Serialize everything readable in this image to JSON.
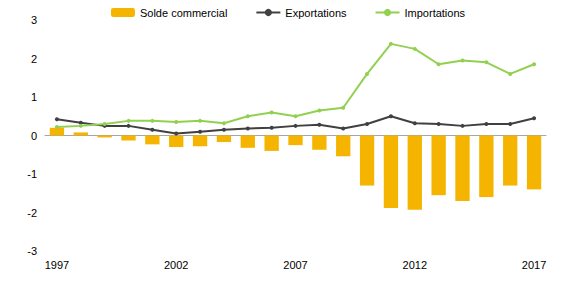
{
  "chart_data": {
    "type": "bar",
    "categories": [
      "1997",
      null,
      null,
      null,
      null,
      "2002",
      null,
      null,
      null,
      null,
      "2007",
      null,
      null,
      null,
      null,
      "2012",
      null,
      null,
      null,
      null,
      "2017"
    ],
    "series": [
      {
        "name": "Solde commercial",
        "type": "bar",
        "color": "#F4B400",
        "values": [
          0.2,
          0.08,
          -0.05,
          -0.13,
          -0.23,
          -0.3,
          -0.28,
          -0.17,
          -0.32,
          -0.4,
          -0.25,
          -0.37,
          -0.54,
          -1.3,
          -1.88,
          -1.93,
          -1.55,
          -1.7,
          -1.6,
          -1.3,
          -1.4
        ]
      },
      {
        "name": "Exportations",
        "type": "line",
        "color": "#404040",
        "marker": "circle",
        "values": [
          0.42,
          0.33,
          0.25,
          0.25,
          0.15,
          0.05,
          0.1,
          0.15,
          0.18,
          0.2,
          0.25,
          0.28,
          0.18,
          0.3,
          0.5,
          0.32,
          0.3,
          0.25,
          0.3,
          0.3,
          0.45
        ]
      },
      {
        "name": "Importations",
        "type": "line",
        "color": "#92D050",
        "marker": "circle",
        "values": [
          0.22,
          0.25,
          0.3,
          0.38,
          0.38,
          0.35,
          0.38,
          0.32,
          0.5,
          0.6,
          0.5,
          0.65,
          0.72,
          1.6,
          2.38,
          2.25,
          1.85,
          1.95,
          1.9,
          1.6,
          1.85
        ]
      }
    ],
    "ylim": [
      -3,
      3
    ],
    "yticks": [
      -3,
      -2,
      -1,
      0,
      1,
      2,
      3
    ],
    "grid": false,
    "legend": "top"
  }
}
